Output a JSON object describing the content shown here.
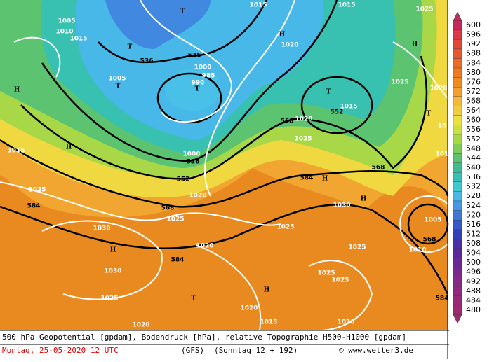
{
  "map": {
    "labels": [
      "1015",
      "1015",
      "1025",
      "1005",
      "1010",
      "1015",
      "1020",
      "T",
      "T",
      "536",
      "536",
      "1000",
      "985",
      "990",
      "T",
      "T",
      "1005",
      "H",
      "H",
      "H",
      "T",
      "552",
      "1015",
      "1025",
      "1020",
      "T",
      "10",
      "568",
      "1020",
      "1025",
      "H",
      "1015",
      "1000",
      "536",
      "552",
      "1020",
      "568",
      "584",
      "H",
      "1025",
      "584",
      "568",
      "1025",
      "H",
      "1030",
      "1030",
      "1025",
      "1005",
      "568",
      "1010",
      "1020",
      "1025",
      "H",
      "1030",
      "584",
      "1025",
      "1025",
      "H",
      "T",
      "1025",
      "1020",
      "584",
      "1015",
      "1020",
      "1020",
      "101"
    ]
  },
  "legend": {
    "labels": [
      "600",
      "596",
      "592",
      "588",
      "584",
      "580",
      "576",
      "572",
      "568",
      "564",
      "560",
      "556",
      "552",
      "548",
      "544",
      "540",
      "536",
      "532",
      "528",
      "524",
      "520",
      "516",
      "512",
      "508",
      "504",
      "500",
      "496",
      "492",
      "488",
      "484",
      "480"
    ],
    "colors": [
      "#c8285a",
      "#d83848",
      "#e04838",
      "#e85830",
      "#ec6a28",
      "#f07a20",
      "#f08a20",
      "#f3a030",
      "#f5b838",
      "#f2cc40",
      "#ece040",
      "#cce040",
      "#a8d848",
      "#80cc58",
      "#5cc470",
      "#40bc90",
      "#38c0b0",
      "#40c8d0",
      "#48b8e8",
      "#4898e8",
      "#4078d8",
      "#3858c8",
      "#3440b8",
      "#4830a8",
      "#5a28a0",
      "#6a2898",
      "#7a2890",
      "#882888",
      "#902880",
      "#982878",
      "#a02870"
    ]
  },
  "footer": {
    "line1": "500 hPa Geopotential [gpdam], Bodendruck [hPa], relative Topographie H500-H1000 [gpdam]",
    "date": "Montag, 25-05-2020  12 UTC",
    "model": "(GFS)",
    "run": "(Sonntag 12 + 192)",
    "copyright": "© www.wetter3.de"
  }
}
